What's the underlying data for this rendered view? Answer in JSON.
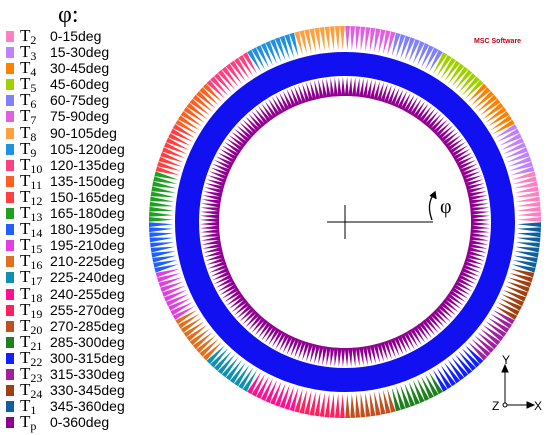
{
  "legend": {
    "title": "φ:",
    "items": [
      {
        "name": "T",
        "sub": "2",
        "range": "0-15deg",
        "color": "#ff80c0"
      },
      {
        "name": "T",
        "sub": "3",
        "range": "15-30deg",
        "color": "#c080ff"
      },
      {
        "name": "T",
        "sub": "4",
        "range": "30-45deg",
        "color": "#ff8000"
      },
      {
        "name": "T",
        "sub": "5",
        "range": "45-60deg",
        "color": "#a0d000"
      },
      {
        "name": "T",
        "sub": "6",
        "range": "60-75deg",
        "color": "#8080ff"
      },
      {
        "name": "T",
        "sub": "7",
        "range": "75-90deg",
        "color": "#e060e0"
      },
      {
        "name": "T",
        "sub": "8",
        "range": "90-105deg",
        "color": "#ffa040"
      },
      {
        "name": "T",
        "sub": "9",
        "range": "105-120deg",
        "color": "#2090e0"
      },
      {
        "name": "T",
        "sub": "10",
        "range": "120-135deg",
        "color": "#ff4080"
      },
      {
        "name": "T",
        "sub": "11",
        "range": "135-150deg",
        "color": "#ff6020"
      },
      {
        "name": "T",
        "sub": "12",
        "range": "150-165deg",
        "color": "#ff4040"
      },
      {
        "name": "T",
        "sub": "13",
        "range": "165-180deg",
        "color": "#20a020"
      },
      {
        "name": "T",
        "sub": "14",
        "range": "180-195deg",
        "color": "#2060ff"
      },
      {
        "name": "T",
        "sub": "15",
        "range": "195-210deg",
        "color": "#e040e0"
      },
      {
        "name": "T",
        "sub": "16",
        "range": "210-225deg",
        "color": "#e07020"
      },
      {
        "name": "T",
        "sub": "17",
        "range": "225-240deg",
        "color": "#1090b0"
      },
      {
        "name": "T",
        "sub": "18",
        "range": "240-255deg",
        "color": "#ff1090"
      },
      {
        "name": "T",
        "sub": "19",
        "range": "255-270deg",
        "color": "#ff2060"
      },
      {
        "name": "T",
        "sub": "20",
        "range": "270-285deg",
        "color": "#c05020"
      },
      {
        "name": "T",
        "sub": "21",
        "range": "285-300deg",
        "color": "#208020"
      },
      {
        "name": "T",
        "sub": "22",
        "range": "300-315deg",
        "color": "#1020ff"
      },
      {
        "name": "T",
        "sub": "23",
        "range": "315-330deg",
        "color": "#a020a0"
      },
      {
        "name": "T",
        "sub": "24",
        "range": "330-345deg",
        "color": "#a04010"
      },
      {
        "name": "T",
        "sub": "1",
        "range": "345-360deg",
        "color": "#1060a0"
      },
      {
        "name": "T",
        "sub": "p",
        "range": "0-360deg",
        "color": "#900090"
      }
    ]
  },
  "diagram": {
    "angle_label": "φ",
    "ring_color": "#1010f0",
    "pressure_color": "#900090",
    "axes": {
      "y": "Y",
      "z": "Z",
      "x": "X"
    }
  },
  "logo": {
    "text": "MSC Software"
  }
}
